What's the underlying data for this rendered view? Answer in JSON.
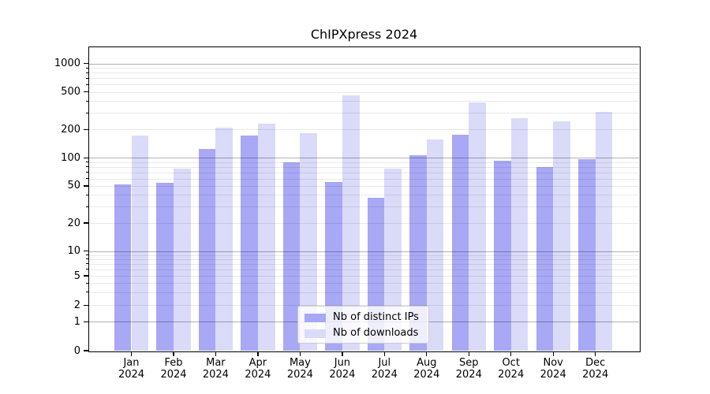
{
  "chart_data": {
    "type": "bar",
    "title": "ChIPXpress 2024",
    "x_months": [
      "Jan",
      "Feb",
      "Mar",
      "Apr",
      "May",
      "Jun",
      "Jul",
      "Aug",
      "Sep",
      "Oct",
      "Nov",
      "Dec"
    ],
    "x_year": "2024",
    "categories": [
      "Jan 2024",
      "Feb 2024",
      "Mar 2024",
      "Apr 2024",
      "May 2024",
      "Jun 2024",
      "Jul 2024",
      "Aug 2024",
      "Sep 2024",
      "Oct 2024",
      "Nov 2024",
      "Dec 2024"
    ],
    "series": [
      {
        "name": "Nb of distinct IPs",
        "color": "#a8a8f5",
        "values": [
          52,
          54,
          125,
          173,
          90,
          55,
          37,
          107,
          177,
          93,
          79,
          97
        ]
      },
      {
        "name": "Nb of downloads",
        "color": "#dadaf9",
        "values": [
          173,
          77,
          210,
          232,
          184,
          460,
          77,
          158,
          387,
          263,
          242,
          305
        ]
      }
    ],
    "y_ticks": [
      0,
      1,
      2,
      5,
      10,
      20,
      50,
      100,
      200,
      500,
      1000
    ],
    "y_scale": "symlog",
    "ylim": [
      0,
      1500
    ],
    "xlabel": "",
    "ylabel": "",
    "grid": true,
    "legend_position": "lower center",
    "colors": {
      "background": "#ffffff",
      "spine": "#000000",
      "major_grid": "#adadad",
      "minor_grid": "#e9e9e9"
    }
  }
}
